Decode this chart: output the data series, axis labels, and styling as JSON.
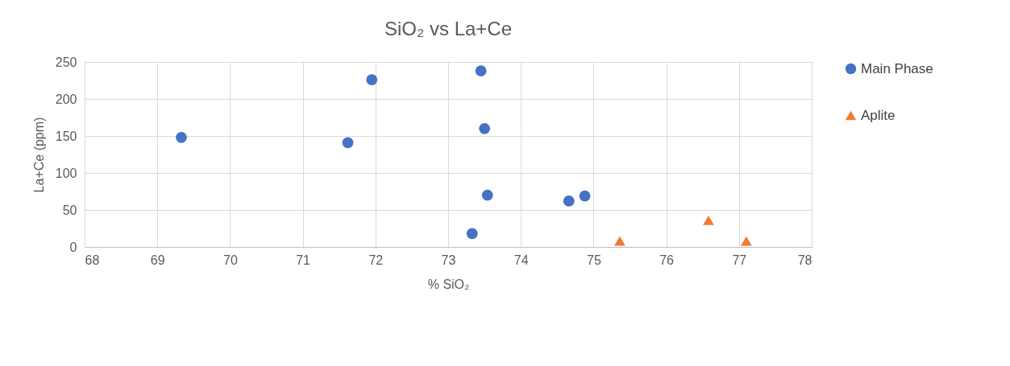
{
  "chart_data": {
    "type": "scatter",
    "title": "SiO₂ vs La+Ce",
    "xlabel": "% SiO₂",
    "ylabel": "La+Ce (ppm)",
    "xlim": [
      68,
      78
    ],
    "xticks": [
      68,
      69,
      70,
      71,
      72,
      73,
      74,
      75,
      76,
      77,
      78
    ],
    "ylim": [
      0,
      250
    ],
    "yticks": [
      0,
      50,
      100,
      150,
      200,
      250
    ],
    "grid": true,
    "legend": "right",
    "series": [
      {
        "name": "Main Phase",
        "color": "#4472c4",
        "marker": "circle",
        "x": [
          69.33,
          71.62,
          71.95,
          73.45,
          73.5,
          73.54,
          73.33,
          74.66,
          74.88
        ],
        "values": [
          148,
          141,
          226,
          238,
          160,
          70,
          18,
          62,
          69
        ]
      },
      {
        "name": "Aplite",
        "color": "#ed7d31",
        "marker": "triangle",
        "x": [
          75.36,
          76.58,
          77.1
        ],
        "values": [
          8,
          36,
          8
        ]
      }
    ]
  }
}
